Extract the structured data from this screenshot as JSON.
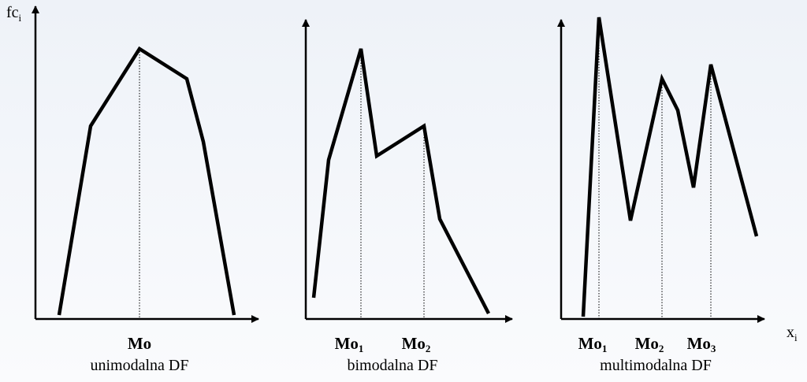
{
  "y_axis_label": {
    "text": "fc",
    "sub": "i"
  },
  "x_axis_label": {
    "text": "x",
    "sub": "i"
  },
  "panels": [
    {
      "caption": "unimodalna DF",
      "modes": [
        {
          "text": "Mo"
        }
      ]
    },
    {
      "caption": "bimodalna DF",
      "modes": [
        {
          "text": "Mo",
          "sub": "1"
        },
        {
          "text": "Mo",
          "sub": "2"
        }
      ]
    },
    {
      "caption": "multimodalna DF",
      "modes": [
        {
          "text": "Mo",
          "sub": "1"
        },
        {
          "text": "Mo",
          "sub": "2"
        },
        {
          "text": "Mo",
          "sub": "3"
        }
      ]
    }
  ]
}
